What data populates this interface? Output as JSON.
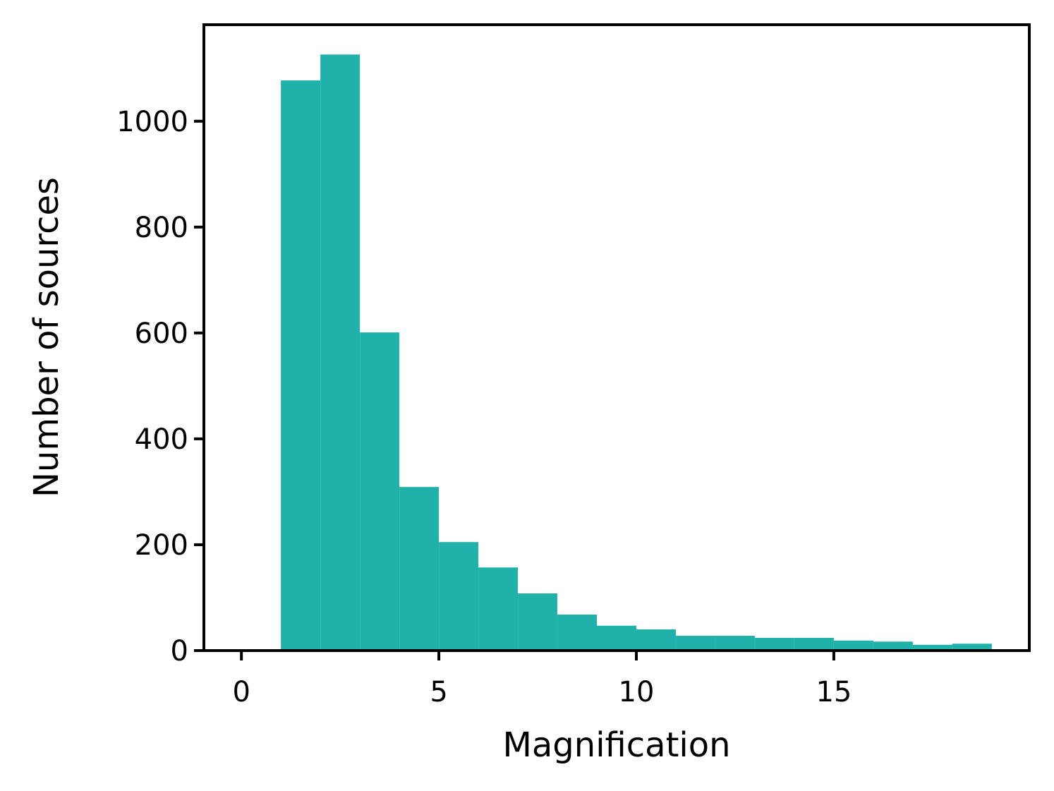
{
  "chart_data": {
    "type": "histogram",
    "xlabel": "Magnification",
    "ylabel": "Number of sources",
    "bins": [
      0,
      1,
      2,
      3,
      4,
      5,
      6,
      7,
      8,
      9,
      10,
      11,
      12,
      13,
      14,
      15,
      16,
      17,
      18,
      19
    ],
    "values": [
      0,
      1077,
      1126,
      601,
      309,
      205,
      157,
      108,
      68,
      47,
      40,
      28,
      28,
      24,
      24,
      19,
      17,
      11,
      13
    ],
    "color": "#20b2aa",
    "xlim": [
      -0.95,
      19.95
    ],
    "xticks": [
      0,
      5,
      10,
      15
    ],
    "ylim": [
      0,
      1182.3
    ],
    "yticks": [
      0,
      200,
      400,
      600,
      800,
      1000
    ]
  }
}
